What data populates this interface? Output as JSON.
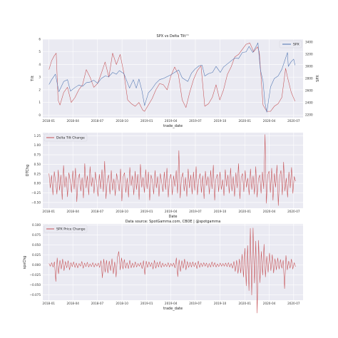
{
  "chart_data": [
    {
      "type": "line",
      "title": "SPX vs Delta Tilt™",
      "xlabel": "trade_date",
      "ylabel": "Tilt",
      "y2label": "SPX",
      "xlim": [
        "2017-12-10",
        "2020-08-05"
      ],
      "ylim": [
        -0.2,
        6.0
      ],
      "y2lim": [
        2150,
        3450
      ],
      "yticks": [
        0,
        1,
        2,
        3,
        4,
        5,
        6
      ],
      "y2ticks": [
        2200,
        2400,
        2600,
        2800,
        3000,
        3200,
        3400
      ],
      "xticks": [
        "2018-01",
        "2018-04",
        "2018-07",
        "2018-10",
        "2019-01",
        "2019-04",
        "2019-07",
        "2019-10",
        "2020-01",
        "2020-04",
        "2020-07"
      ],
      "grid": true,
      "legend": "top-right",
      "series": [
        {
          "name": "Tilt",
          "axis": "left",
          "color": "#c44e52",
          "x": [
            "2018-01-02",
            "2018-01-12",
            "2018-01-22",
            "2018-01-29",
            "2018-02-05",
            "2018-02-12",
            "2018-02-26",
            "2018-03-12",
            "2018-03-26",
            "2018-04-09",
            "2018-04-23",
            "2018-05-07",
            "2018-05-21",
            "2018-06-04",
            "2018-06-18",
            "2018-07-02",
            "2018-07-16",
            "2018-07-30",
            "2018-08-13",
            "2018-08-27",
            "2018-09-10",
            "2018-09-24",
            "2018-10-08",
            "2018-10-22",
            "2018-11-05",
            "2018-11-19",
            "2018-12-03",
            "2018-12-17",
            "2018-12-24",
            "2019-01-07",
            "2019-01-21",
            "2019-02-04",
            "2019-02-18",
            "2019-03-04",
            "2019-03-18",
            "2019-04-01",
            "2019-04-15",
            "2019-04-29",
            "2019-05-13",
            "2019-05-27",
            "2019-06-10",
            "2019-06-24",
            "2019-07-08",
            "2019-07-22",
            "2019-08-05",
            "2019-08-19",
            "2019-09-02",
            "2019-09-16",
            "2019-09-30",
            "2019-10-14",
            "2019-10-28",
            "2019-11-11",
            "2019-11-25",
            "2019-12-09",
            "2019-12-23",
            "2020-01-06",
            "2020-01-20",
            "2020-02-03",
            "2020-02-17",
            "2020-02-24",
            "2020-03-09",
            "2020-03-23",
            "2020-04-06",
            "2020-04-20",
            "2020-05-04",
            "2020-05-18",
            "2020-06-01",
            "2020-06-08",
            "2020-06-22",
            "2020-07-06"
          ],
          "values": [
            3.6,
            4.3,
            4.7,
            4.9,
            1.2,
            0.8,
            1.8,
            2.2,
            1.0,
            1.4,
            2.0,
            2.4,
            3.6,
            3.0,
            2.2,
            2.5,
            3.3,
            4.2,
            3.0,
            4.9,
            4.0,
            4.8,
            3.3,
            1.2,
            0.9,
            0.7,
            1.0,
            0.4,
            0.3,
            0.8,
            1.3,
            2.0,
            2.5,
            2.4,
            2.0,
            3.1,
            3.8,
            3.2,
            1.2,
            0.6,
            1.8,
            2.8,
            3.5,
            3.9,
            0.7,
            0.9,
            1.4,
            2.4,
            1.2,
            2.0,
            3.2,
            3.8,
            4.6,
            4.8,
            5.2,
            5.6,
            5.7,
            5.0,
            5.4,
            5.0,
            0.8,
            0.3,
            0.3,
            0.7,
            0.9,
            1.4,
            3.7,
            3.0,
            1.8,
            1.1
          ]
        },
        {
          "name": "SPX",
          "axis": "right",
          "color": "#4c72b0",
          "x": [
            "2018-01-02",
            "2018-01-12",
            "2018-01-26",
            "2018-02-08",
            "2018-02-26",
            "2018-03-12",
            "2018-03-23",
            "2018-04-09",
            "2018-04-23",
            "2018-05-07",
            "2018-05-21",
            "2018-06-04",
            "2018-06-18",
            "2018-07-02",
            "2018-07-16",
            "2018-07-30",
            "2018-08-13",
            "2018-08-27",
            "2018-09-10",
            "2018-09-21",
            "2018-10-08",
            "2018-10-29",
            "2018-11-12",
            "2018-11-23",
            "2018-12-03",
            "2018-12-14",
            "2018-12-24",
            "2019-01-07",
            "2019-01-21",
            "2019-02-04",
            "2019-02-18",
            "2019-03-04",
            "2019-03-18",
            "2019-04-01",
            "2019-04-15",
            "2019-04-30",
            "2019-05-13",
            "2019-06-03",
            "2019-06-17",
            "2019-07-01",
            "2019-07-15",
            "2019-07-26",
            "2019-08-05",
            "2019-08-19",
            "2019-09-03",
            "2019-09-16",
            "2019-10-02",
            "2019-10-14",
            "2019-10-28",
            "2019-11-11",
            "2019-11-25",
            "2019-12-09",
            "2019-12-23",
            "2020-01-06",
            "2020-01-17",
            "2020-01-31",
            "2020-02-19",
            "2020-02-28",
            "2020-03-09",
            "2020-03-16",
            "2020-03-23",
            "2020-04-06",
            "2020-04-20",
            "2020-05-04",
            "2020-05-18",
            "2020-06-08",
            "2020-06-11",
            "2020-06-22",
            "2020-07-01",
            "2020-07-06"
          ],
          "values": [
            2700,
            2780,
            2870,
            2580,
            2750,
            2780,
            2590,
            2650,
            2690,
            2670,
            2730,
            2740,
            2770,
            2720,
            2800,
            2840,
            2830,
            2900,
            2870,
            2930,
            2880,
            2640,
            2780,
            2640,
            2790,
            2600,
            2350,
            2560,
            2630,
            2720,
            2780,
            2800,
            2830,
            2860,
            2900,
            2940,
            2810,
            2750,
            2890,
            2960,
            3010,
            3020,
            2840,
            2880,
            2900,
            3000,
            2900,
            2990,
            3040,
            3090,
            3140,
            3130,
            3230,
            3240,
            3330,
            3230,
            3390,
            2950,
            2750,
            2400,
            2240,
            2660,
            2800,
            2840,
            2950,
            3230,
            3000,
            3080,
            3120,
            3020
          ]
        }
      ]
    },
    {
      "type": "line",
      "title": "",
      "xlabel": "Date",
      "ylabel": "DTChg",
      "xlim": [
        "2017-12-10",
        "2020-08-05"
      ],
      "ylim": [
        -0.65,
        1.33
      ],
      "yticks": [
        -0.5,
        -0.25,
        0.0,
        0.25,
        0.5,
        0.75,
        1.0,
        1.25
      ],
      "ytick_labels": [
        "−0.50",
        "−0.25",
        "0.00",
        "0.25",
        "0.50",
        "0.75",
        "1.00",
        "1.25"
      ],
      "xticks": [
        "2018-01",
        "2018-04",
        "2018-07",
        "2018-10",
        "2019-01",
        "2019-04",
        "2019-07",
        "2019-10",
        "2020-01",
        "2020-04",
        "2020-07"
      ],
      "grid": true,
      "legend": "top-left",
      "annotations": [
        "Data source: SpotGamma.com, CBOE | @spotgamma"
      ],
      "series": [
        {
          "name": "Delta Tilt Change",
          "color": "#c44e52",
          "start": "2018-01-02",
          "end": "2020-07-08",
          "values": [
            0.26,
            -0.12,
            0.21,
            -0.3,
            0.31,
            0.05,
            -0.28,
            0.35,
            -0.18,
            0.22,
            -0.42,
            0.47,
            -0.1,
            0.18,
            -0.35,
            0.28,
            0.08,
            -0.24,
            0.33,
            -0.15,
            0.4,
            -0.48,
            0.12,
            0.25,
            -0.2,
            0.15,
            -0.38,
            0.52,
            -0.12,
            0.2,
            -0.3,
            0.44,
            -0.08,
            0.16,
            -0.26,
            0.3,
            0.02,
            -0.34,
            0.24,
            -0.14,
            0.36,
            -0.22,
            0.58,
            -0.4,
            0.1,
            0.22,
            -0.28,
            0.34,
            -0.18,
            0.12,
            -0.32,
            0.26,
            0.06,
            -0.2,
            0.38,
            -0.46,
            0.18,
            0.28,
            -0.24,
            0.14,
            -0.36,
            0.42,
            -0.06,
            0.2,
            -0.3,
            0.32,
            -0.16,
            0.24,
            -0.42,
            0.5,
            -0.1,
            0.16,
            -0.24,
            0.36,
            -0.14,
            0.3,
            -0.44,
            0.22,
            0.08,
            -0.28,
            0.34,
            -0.12,
            0.18,
            -0.34,
            0.26,
            0.04,
            -0.22,
            0.3,
            -0.16,
            0.4,
            -0.36,
            0.12,
            0.24,
            -0.3,
            0.2,
            -0.08,
            0.34,
            -0.26,
            0.86,
            -0.38,
            0.14,
            0.28,
            -0.2,
            0.16,
            -0.34,
            0.38,
            -0.12,
            0.22,
            -0.28,
            0.3,
            -0.18,
            0.44,
            -0.3,
            0.1,
            0.26,
            -0.24,
            0.2,
            -0.4,
            0.32,
            -0.06,
            0.18,
            -0.28,
            0.34,
            -0.14,
            0.48,
            -0.44,
            0.12,
            0.24,
            -0.22,
            0.3,
            -0.16,
            0.1,
            -0.32,
            0.36,
            -0.08,
            0.22,
            -0.26,
            0.4,
            -0.2,
            0.18,
            -0.34,
            0.28,
            -0.12,
            0.52,
            -0.4,
            0.16,
            0.26,
            -0.22,
            0.34,
            -0.1,
            0.14,
            -0.3,
            0.38,
            -0.16,
            0.2,
            -0.28,
            0.44,
            -0.36,
            0.12,
            0.22,
            -0.26,
            0.3,
            -0.14,
            1.28,
            -0.52,
            0.22,
            0.32,
            -0.24,
            0.4,
            -0.44,
            0.26,
            -0.1,
            0.48,
            -0.58,
            0.18,
            0.34,
            -0.3,
            0.56,
            -0.2,
            0.14,
            -0.36,
            0.3,
            -0.12,
            0.42,
            -0.26,
            0.18,
            0.06
          ]
        }
      ]
    },
    {
      "type": "line",
      "title": "",
      "xlabel": "trade_date",
      "ylabel": "spxChg",
      "xlim": [
        "2017-12-10",
        "2020-08-05"
      ],
      "ylim": [
        -0.088,
        0.103
      ],
      "yticks": [
        -0.075,
        -0.05,
        -0.025,
        0.0,
        0.025,
        0.05,
        0.075,
        0.1
      ],
      "ytick_labels": [
        "−0.075",
        "−0.050",
        "−0.025",
        "0.000",
        "0.025",
        "0.050",
        "0.075",
        "0.100"
      ],
      "xticks": [
        "2018-01",
        "2018-04",
        "2018-07",
        "2018-10",
        "2019-01",
        "2019-04",
        "2019-07",
        "2019-10",
        "2020-01",
        "2020-04",
        "2020-07"
      ],
      "grid": true,
      "legend": "top-left",
      "series": [
        {
          "name": "SPX Price Change",
          "color": "#c44e52",
          "start": "2018-01-02",
          "end": "2020-07-08",
          "values": [
            0.004,
            -0.003,
            0.006,
            -0.005,
            0.008,
            -0.041,
            0.018,
            -0.022,
            0.012,
            -0.01,
            0.015,
            -0.014,
            0.009,
            -0.007,
            0.011,
            -0.012,
            0.006,
            -0.004,
            0.008,
            -0.006,
            0.005,
            -0.007,
            0.004,
            -0.003,
            0.009,
            -0.008,
            0.005,
            -0.004,
            0.007,
            -0.005,
            0.003,
            -0.004,
            0.006,
            -0.005,
            0.004,
            -0.003,
            0.005,
            -0.006,
            0.011,
            -0.032,
            0.015,
            -0.018,
            0.012,
            -0.02,
            0.01,
            -0.014,
            0.016,
            -0.022,
            0.008,
            -0.03,
            0.02,
            0.034,
            -0.012,
            0.018,
            -0.01,
            0.014,
            -0.008,
            0.006,
            -0.009,
            0.012,
            -0.007,
            0.005,
            -0.006,
            0.008,
            -0.005,
            0.004,
            -0.003,
            0.006,
            -0.009,
            0.011,
            -0.024,
            0.01,
            -0.006,
            0.008,
            -0.004,
            0.006,
            -0.01,
            0.012,
            -0.008,
            0.007,
            -0.005,
            0.009,
            -0.006,
            0.005,
            -0.004,
            0.003,
            -0.004,
            0.006,
            -0.005,
            0.004,
            -0.003,
            0.005,
            -0.007,
            0.018,
            -0.029,
            0.013,
            -0.016,
            0.011,
            -0.008,
            0.015,
            -0.012,
            0.009,
            -0.006,
            0.007,
            -0.005,
            0.008,
            -0.004,
            0.006,
            -0.009,
            0.01,
            -0.006,
            0.005,
            -0.004,
            0.006,
            -0.003,
            0.005,
            -0.006,
            0.004,
            -0.005,
            0.008,
            -0.004,
            0.006,
            -0.005,
            0.003,
            -0.004,
            0.005,
            -0.003,
            0.004,
            -0.003,
            0.005,
            -0.004,
            0.006,
            -0.005,
            0.004,
            -0.008,
            0.009,
            -0.016,
            0.012,
            -0.021,
            0.015,
            -0.02,
            0.027,
            -0.03,
            0.042,
            -0.052,
            0.049,
            -0.064,
            0.092,
            -0.075,
            0.093,
            -0.045,
            0.06,
            -0.12,
            0.062,
            -0.044,
            0.034,
            -0.025,
            0.052,
            -0.03,
            0.022,
            -0.018,
            0.03,
            -0.014,
            0.026,
            -0.02,
            0.016,
            -0.012,
            0.018,
            -0.01,
            0.014,
            -0.008,
            0.012,
            -0.059,
            0.024,
            -0.012,
            0.01,
            -0.008,
            0.015,
            -0.01,
            0.006,
            -0.004
          ]
        }
      ]
    }
  ]
}
